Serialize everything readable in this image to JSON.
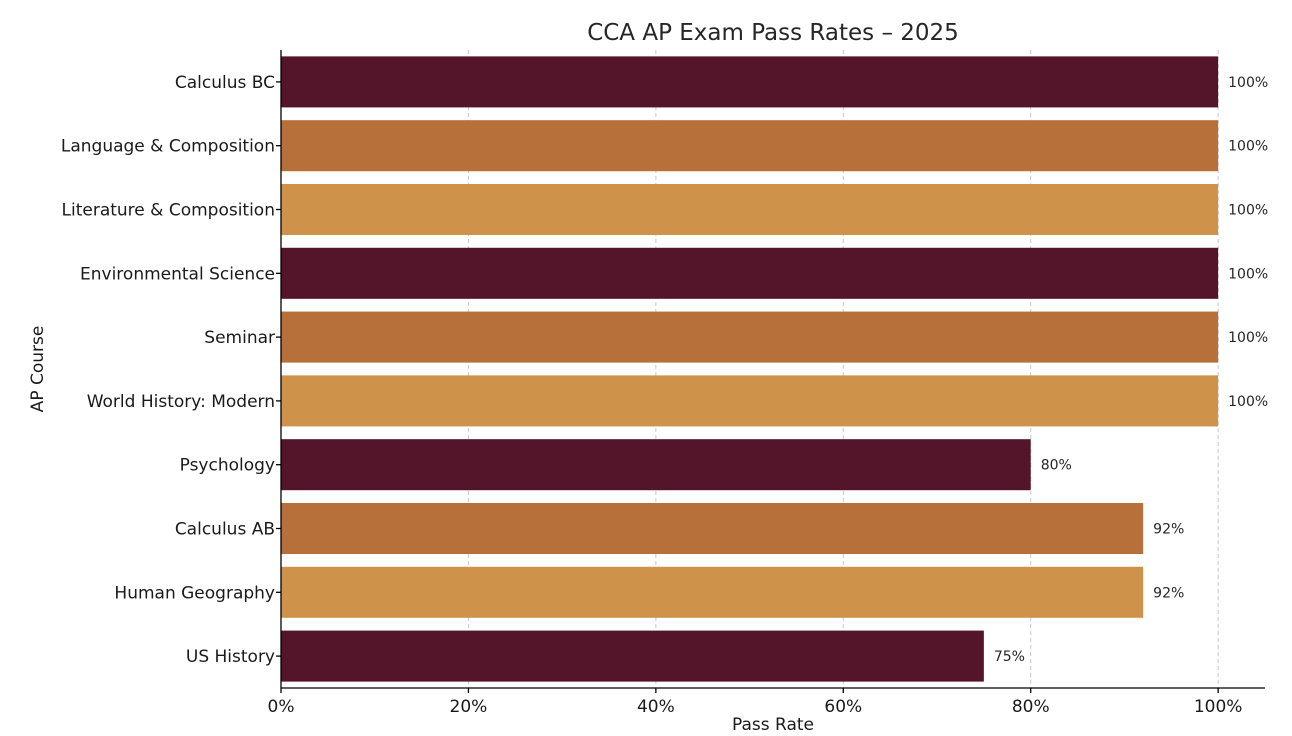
{
  "chart_data": {
    "type": "bar",
    "orientation": "horizontal",
    "title": "CCA AP Exam Pass Rates – 2025",
    "xlabel": "Pass Rate",
    "ylabel": "AP Course",
    "xlim": [
      0,
      105
    ],
    "x_ticks": [
      0,
      20,
      40,
      60,
      80,
      100
    ],
    "x_tick_labels": [
      "0%",
      "20%",
      "40%",
      "60%",
      "80%",
      "100%"
    ],
    "grid": "vertical dashed",
    "legend": "none",
    "categories": [
      "Calculus BC",
      "Language & Composition",
      "Literature & Composition",
      "Environmental Science",
      "Seminar",
      "World History: Modern",
      "Psychology",
      "Calculus AB",
      "Human Geography",
      "US History"
    ],
    "values": [
      100,
      100,
      100,
      100,
      100,
      100,
      80,
      92,
      92,
      75
    ],
    "data_labels": [
      "100%",
      "100%",
      "100%",
      "100%",
      "100%",
      "100%",
      "80%",
      "92%",
      "92%",
      "75%"
    ],
    "colors": [
      "#54152a",
      "#b8703a",
      "#cf924a",
      "#54152a",
      "#b8703a",
      "#cf924a",
      "#54152a",
      "#b8703a",
      "#cf924a",
      "#54152a"
    ]
  }
}
